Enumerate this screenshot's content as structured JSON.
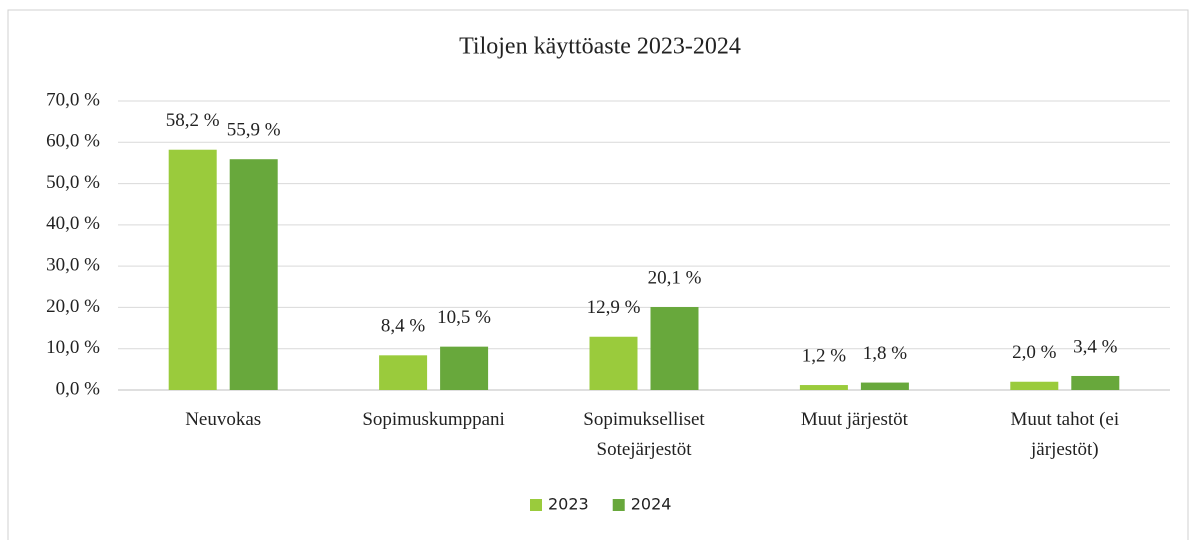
{
  "chart_data": {
    "type": "bar",
    "title": "Tilojen käyttöaste 2023-2024",
    "categories": [
      "Neuvokas",
      "Sopimuskumppani",
      "Sopimukselliset Sotejärjestöt",
      "Muut järjestöt",
      "Muut tahot (ei järjestöt)"
    ],
    "series": [
      {
        "name": "2023",
        "color": "#9acb3c",
        "values": [
          58.2,
          8.4,
          12.9,
          1.2,
          2.0
        ],
        "value_labels": [
          "58,2 %",
          "8,4 %",
          "12,9 %",
          "1,2 %",
          "2,0 %"
        ]
      },
      {
        "name": "2024",
        "color": "#68a83c",
        "values": [
          55.9,
          10.5,
          20.1,
          1.8,
          3.4
        ],
        "value_labels": [
          "55,9 %",
          "10,5 %",
          "20,1 %",
          "1,8 %",
          "3,4 %"
        ]
      }
    ],
    "ylim": [
      0,
      70
    ],
    "yticks": [
      {
        "value": 0,
        "label": "0,0 %"
      },
      {
        "value": 10,
        "label": "10,0 %"
      },
      {
        "value": 20,
        "label": "20,0 %"
      },
      {
        "value": 30,
        "label": "30,0 %"
      },
      {
        "value": 40,
        "label": "40,0 %"
      },
      {
        "value": 50,
        "label": "50,0 %"
      },
      {
        "value": 60,
        "label": "60,0 %"
      },
      {
        "value": 70,
        "label": "70,0 %"
      }
    ],
    "grid": true,
    "legend": "bottom"
  }
}
